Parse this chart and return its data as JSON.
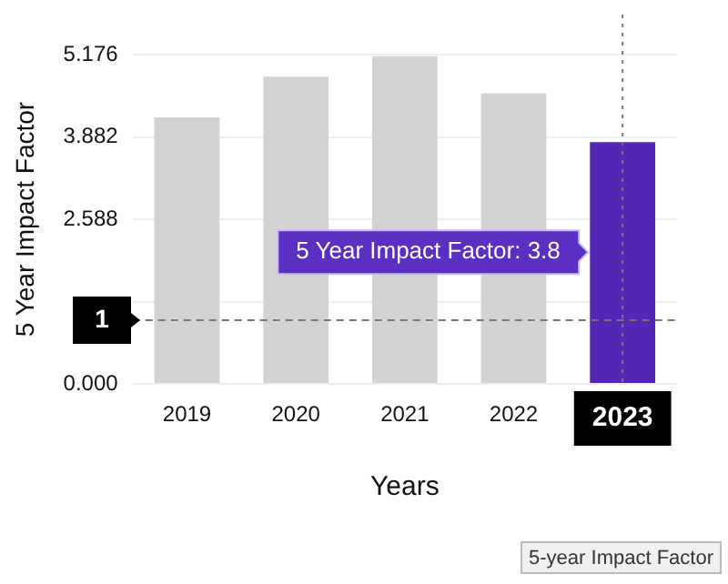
{
  "chart_data": {
    "type": "bar",
    "ylabel": "5 Year Impact Factor",
    "xlabel": "Years",
    "categories": [
      "2019",
      "2020",
      "2021",
      "2022",
      "2023"
    ],
    "values": [
      4.19,
      4.83,
      5.15,
      4.57,
      3.8
    ],
    "colors": [
      "#d3d3d3",
      "#d3d3d3",
      "#d3d3d3",
      "#d3d3d3",
      "#5327b4"
    ],
    "ylim": [
      0,
      5.176
    ],
    "yticks": [
      {
        "value": 0,
        "label": "0.000"
      },
      {
        "value": 1.294,
        "label": null
      },
      {
        "value": 2.588,
        "label": "2.588"
      },
      {
        "value": 3.882,
        "label": "3.882"
      },
      {
        "value": 5.176,
        "label": "5.176"
      }
    ],
    "grid": "y",
    "legend": false,
    "ref_lines": [
      {
        "axis": "y",
        "value": 1,
        "label": "1",
        "line_style": "dashed"
      },
      {
        "axis": "x",
        "value": "2023",
        "line_style": "dotted"
      }
    ],
    "annotations": [
      "5 Year Impact Factor: 3.8",
      "5-year Impact Factor"
    ]
  }
}
